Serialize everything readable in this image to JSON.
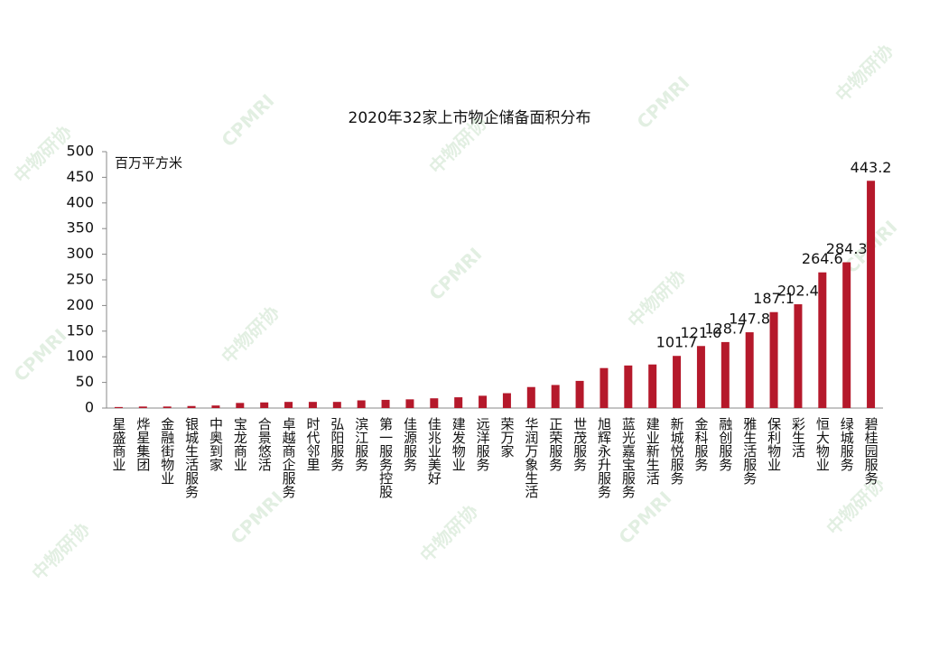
{
  "chart_data": {
    "type": "bar",
    "title": "2020年32家上市物企储备面积分布",
    "y_label": "百万平方米",
    "watermark": [
      "中物研协",
      "CPMRI"
    ],
    "categories": [
      "星盛商业",
      "烨星集团",
      "金融街物业",
      "银城生活服务",
      "中奥到家",
      "宝龙商业",
      "合景悠活",
      "卓越商企服务",
      "时代邻里",
      "弘阳服务",
      "滨江服务",
      "第一服务控股",
      "佳源服务",
      "佳兆业美好",
      "建发物业",
      "远洋服务",
      "荣万家",
      "华润万象生活",
      "正荣服务",
      "世茂服务",
      "旭辉永升服务",
      "蓝光嘉宝服务",
      "建业新生活",
      "新城悦服务",
      "金科服务",
      "融创服务",
      "雅生活服务",
      "保利物业",
      "彩生活",
      "恒大物业",
      "绿城服务",
      "碧桂园服务"
    ],
    "values": [
      2,
      3,
      3,
      4,
      5,
      10,
      11,
      12,
      12,
      12,
      15,
      16,
      17,
      19,
      21,
      24,
      29,
      41,
      45,
      53,
      78,
      83,
      85,
      101.7,
      121.0,
      128.7,
      147.8,
      187.1,
      202.4,
      264.6,
      284.3,
      443.2
    ],
    "value_labels": [
      null,
      null,
      null,
      null,
      null,
      null,
      null,
      null,
      null,
      null,
      null,
      null,
      null,
      null,
      null,
      null,
      null,
      null,
      null,
      null,
      null,
      null,
      null,
      "101.7",
      "121.0",
      "128.7",
      "147.8",
      "187.1",
      "202.4",
      "264.6",
      "284.3",
      "443.2"
    ],
    "color": "#b5192b",
    "ylim": [
      0,
      500
    ],
    "yticks": [
      0,
      50,
      100,
      150,
      200,
      250,
      300,
      350,
      400,
      450,
      500
    ],
    "grid": false
  }
}
